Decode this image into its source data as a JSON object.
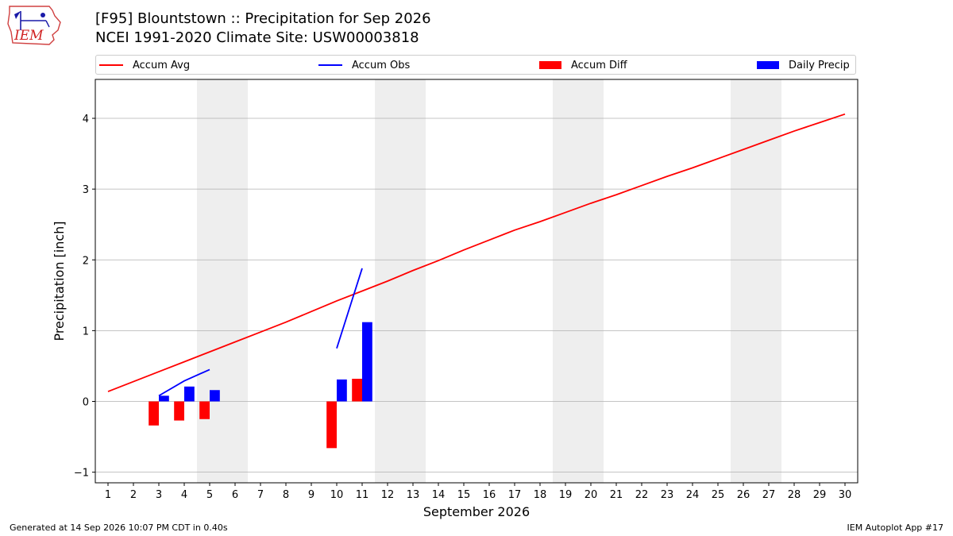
{
  "header": {
    "title_line1": "[F95] Blountstown :: Precipitation for Sep 2026",
    "title_line2": "NCEI 1991-2020 Climate Site: USW00003818"
  },
  "logo": {
    "text": "IEM",
    "icon": "iowa-state-outline-weather-station-icon"
  },
  "footer": {
    "left": "Generated at 14 Sep 2026 10:07 PM CDT in 0.40s",
    "right": "IEM Autoplot App #17"
  },
  "chart_data": {
    "type": "bar",
    "xlabel": "September 2026",
    "ylabel": "Precipitation [inch]",
    "xlim": [
      0.5,
      30.5
    ],
    "ylim": [
      -1.15,
      4.55
    ],
    "grid": "horizontal",
    "legend_position": "top",
    "x_ticks": [
      1,
      2,
      3,
      4,
      5,
      6,
      7,
      8,
      9,
      10,
      11,
      12,
      13,
      14,
      15,
      16,
      17,
      18,
      19,
      20,
      21,
      22,
      23,
      24,
      25,
      26,
      27,
      28,
      29,
      30
    ],
    "y_ticks": [
      -1,
      0,
      1,
      2,
      3,
      4
    ],
    "weekend_shading": [
      [
        5,
        6
      ],
      [
        12,
        13
      ],
      [
        19,
        20
      ],
      [
        26,
        27
      ]
    ],
    "series": [
      {
        "name": "Accum Avg",
        "kind": "line",
        "color": "#ff0000",
        "x": [
          1,
          2,
          3,
          4,
          5,
          6,
          7,
          8,
          9,
          10,
          11,
          12,
          13,
          14,
          15,
          16,
          17,
          18,
          19,
          20,
          21,
          22,
          23,
          24,
          25,
          26,
          27,
          28,
          29,
          30
        ],
        "values": [
          0.14,
          0.28,
          0.42,
          0.56,
          0.7,
          0.84,
          0.98,
          1.12,
          1.27,
          1.42,
          1.56,
          1.7,
          1.85,
          1.99,
          2.14,
          2.28,
          2.42,
          2.54,
          2.67,
          2.8,
          2.92,
          3.05,
          3.18,
          3.3,
          3.43,
          3.56,
          3.69,
          3.82,
          3.94,
          4.06
        ]
      },
      {
        "name": "Accum Obs",
        "kind": "line",
        "color": "#0000ff",
        "segments": [
          {
            "x": [
              3,
              4,
              5
            ],
            "values": [
              0.08,
              0.29,
              0.45
            ]
          },
          {
            "x": [
              10,
              11
            ],
            "values": [
              0.75,
              1.88
            ]
          }
        ]
      },
      {
        "name": "Accum Diff",
        "kind": "bar",
        "color": "#ff0000",
        "offset": -0.2,
        "x": [
          3,
          4,
          5,
          10,
          11
        ],
        "values": [
          -0.34,
          -0.27,
          -0.25,
          -0.66,
          0.32
        ]
      },
      {
        "name": "Daily Precip",
        "kind": "bar",
        "color": "#0000ff",
        "offset": 0.2,
        "x": [
          3,
          4,
          5,
          10,
          11
        ],
        "values": [
          0.08,
          0.21,
          0.16,
          0.31,
          1.12
        ]
      }
    ]
  }
}
